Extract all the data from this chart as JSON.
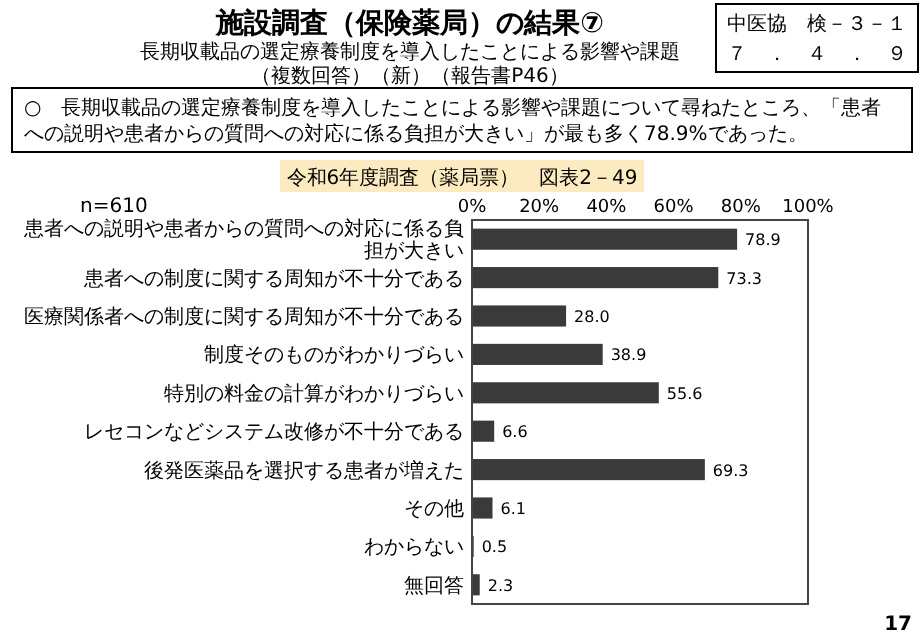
{
  "chart_data": {
    "type": "bar",
    "orientation": "horizontal",
    "title": "施設調査（保険薬局）の結果⑦",
    "subtitle": "長期収載品の選定療養制度を導入したことによる影響や課題（複数回答）（新）（報告書P46）",
    "annotations": [
      "中医協　検－３－１",
      "７　．　４　．　９",
      "○　長期収載品の選定療養制度を導入したことによる影響や課題について尋ねたところ、「患者への説明や患者からの質問への対応に係る負担が大きい」が最も多く78.9%であった。",
      "令和6年度調査（薬局票）　図表2－49",
      "n=610",
      "17"
    ],
    "categories": [
      "患者への説明や患者からの質問への対応に係る負担が大きい",
      "患者への制度に関する周知が不十分である",
      "医療関係者への制度に関する周知が不十分である",
      "制度そのものがわかりづらい",
      "特別の料金の計算がわかりづらい",
      "レセコンなどシステム改修が不十分である",
      "後発医薬品を選択する患者が増えた",
      "その他",
      "わからない",
      "無回答"
    ],
    "values": [
      78.9,
      73.3,
      28.0,
      38.9,
      55.6,
      6.6,
      69.3,
      6.1,
      0.5,
      2.3
    ],
    "value_labels": [
      "78.9",
      "73.3",
      "28.0",
      "38.9",
      "55.6",
      "6.6",
      "69.3",
      "6.1",
      "0.5",
      "2.3"
    ],
    "color": "#3a3a3a",
    "xlim": [
      0,
      100
    ],
    "xticks": [
      {
        "value": 0,
        "label": "0%"
      },
      {
        "value": 20,
        "label": "20%"
      },
      {
        "value": 40,
        "label": "40%"
      },
      {
        "value": 60,
        "label": "60%"
      },
      {
        "value": 80,
        "label": "80%"
      },
      {
        "value": 100,
        "label": "100%"
      }
    ],
    "grid": false
  }
}
